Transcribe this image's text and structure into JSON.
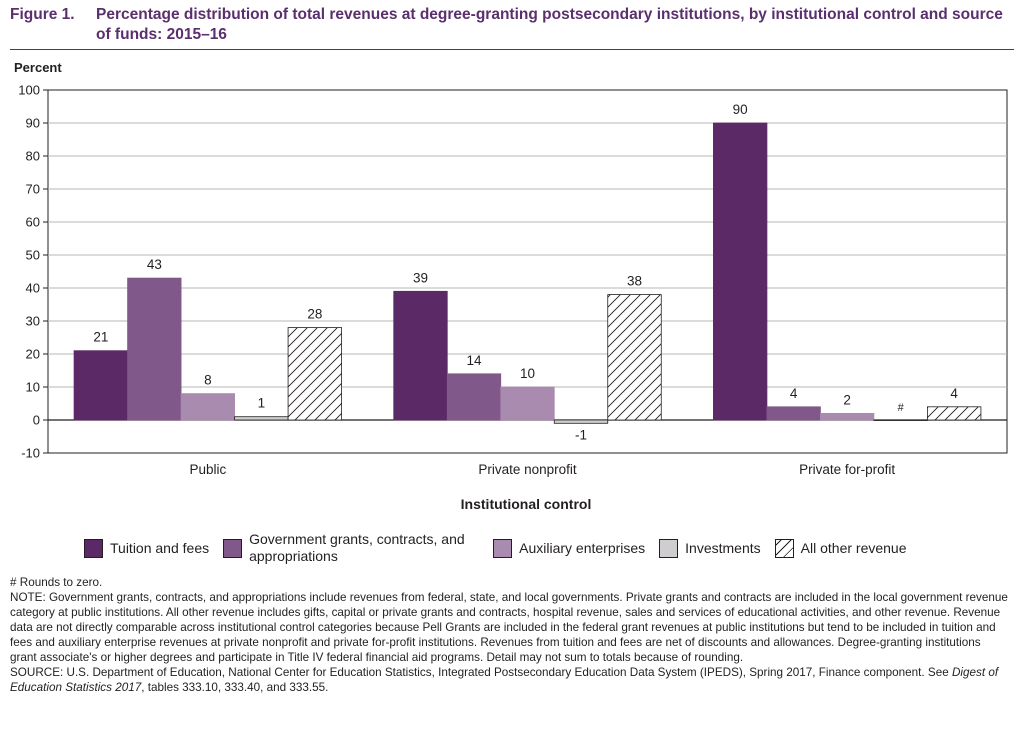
{
  "figure": {
    "number": "Figure 1.",
    "title": "Percentage distribution of total revenues at degree-granting postsecondary institutions, by institutional control and source of funds: 2015–16"
  },
  "chart_data": {
    "type": "bar",
    "title": "Percentage distribution of total revenues at degree-granting postsecondary institutions, by institutional control and source of funds: 2015–16",
    "ylabel": "Percent",
    "xlabel": "Institutional control",
    "ylim": [
      -10,
      100
    ],
    "yticks": [
      -10,
      0,
      10,
      20,
      30,
      40,
      50,
      60,
      70,
      80,
      90,
      100
    ],
    "grid": true,
    "legend_position": "bottom",
    "categories": [
      "Public",
      "Private nonprofit",
      "Private for-profit"
    ],
    "series": [
      {
        "name": "Tuition and fees",
        "values": [
          21,
          39,
          90
        ],
        "labels": [
          "21",
          "39",
          "90"
        ],
        "color": "#5b2a66",
        "pattern": "solid"
      },
      {
        "name": "Government grants, contracts, and appropriations",
        "values": [
          43,
          14,
          4
        ],
        "labels": [
          "43",
          "14",
          "4"
        ],
        "color": "#80588a",
        "pattern": "solid"
      },
      {
        "name": "Auxiliary enterprises",
        "values": [
          8,
          10,
          2
        ],
        "labels": [
          "8",
          "10",
          "2"
        ],
        "color": "#a98bb0",
        "pattern": "solid"
      },
      {
        "name": "Investments",
        "values": [
          1,
          -1,
          0
        ],
        "labels": [
          "1",
          "-1",
          "#"
        ],
        "color": "#cfcdd0",
        "pattern": "solid"
      },
      {
        "name": "All other revenue",
        "values": [
          28,
          38,
          4
        ],
        "labels": [
          "28",
          "38",
          "4"
        ],
        "color": "#ffffff",
        "pattern": "hatch"
      }
    ]
  },
  "legend": {
    "items": [
      {
        "label": "Tuition and fees",
        "color": "#5b2a66",
        "pattern": "solid"
      },
      {
        "label": "Government grants, contracts, and appropriations",
        "color": "#80588a",
        "pattern": "solid"
      },
      {
        "label": "Auxiliary enterprises",
        "color": "#a98bb0",
        "pattern": "solid"
      },
      {
        "label": "Investments",
        "color": "#cfcdd0",
        "pattern": "solid"
      },
      {
        "label": "All other revenue",
        "color": "#ffffff",
        "pattern": "hatch"
      }
    ]
  },
  "notes": {
    "rounds": "# Rounds to zero.",
    "note": "NOTE: Government grants, contracts, and appropriations include revenues from federal, state, and local governments. Private grants and contracts are included in the local government revenue category at public institutions. All other revenue includes gifts, capital or private grants and contracts, hospital revenue, sales and services of educational activities, and other revenue. Revenue data are not directly comparable across institutional control categories because Pell Grants are included in the federal grant revenues at public institutions but tend to be included in tuition and fees and auxiliary enterprise revenues at private nonprofit and private for-profit institutions. Revenues from tuition and fees are net of discounts and allowances. Degree-granting institutions grant associate's or higher degrees and participate in Title IV federal financial aid programs. Detail may not sum to totals because of rounding.",
    "source_prefix": "SOURCE: U.S. Department of Education, National Center for Education Statistics, Integrated Postsecondary Education Data System (IPEDS), Spring 2017, Finance component. See ",
    "source_italic": "Digest of Education Statistics 2017",
    "source_suffix": ", tables 333.10, 333.40, and 333.55."
  }
}
